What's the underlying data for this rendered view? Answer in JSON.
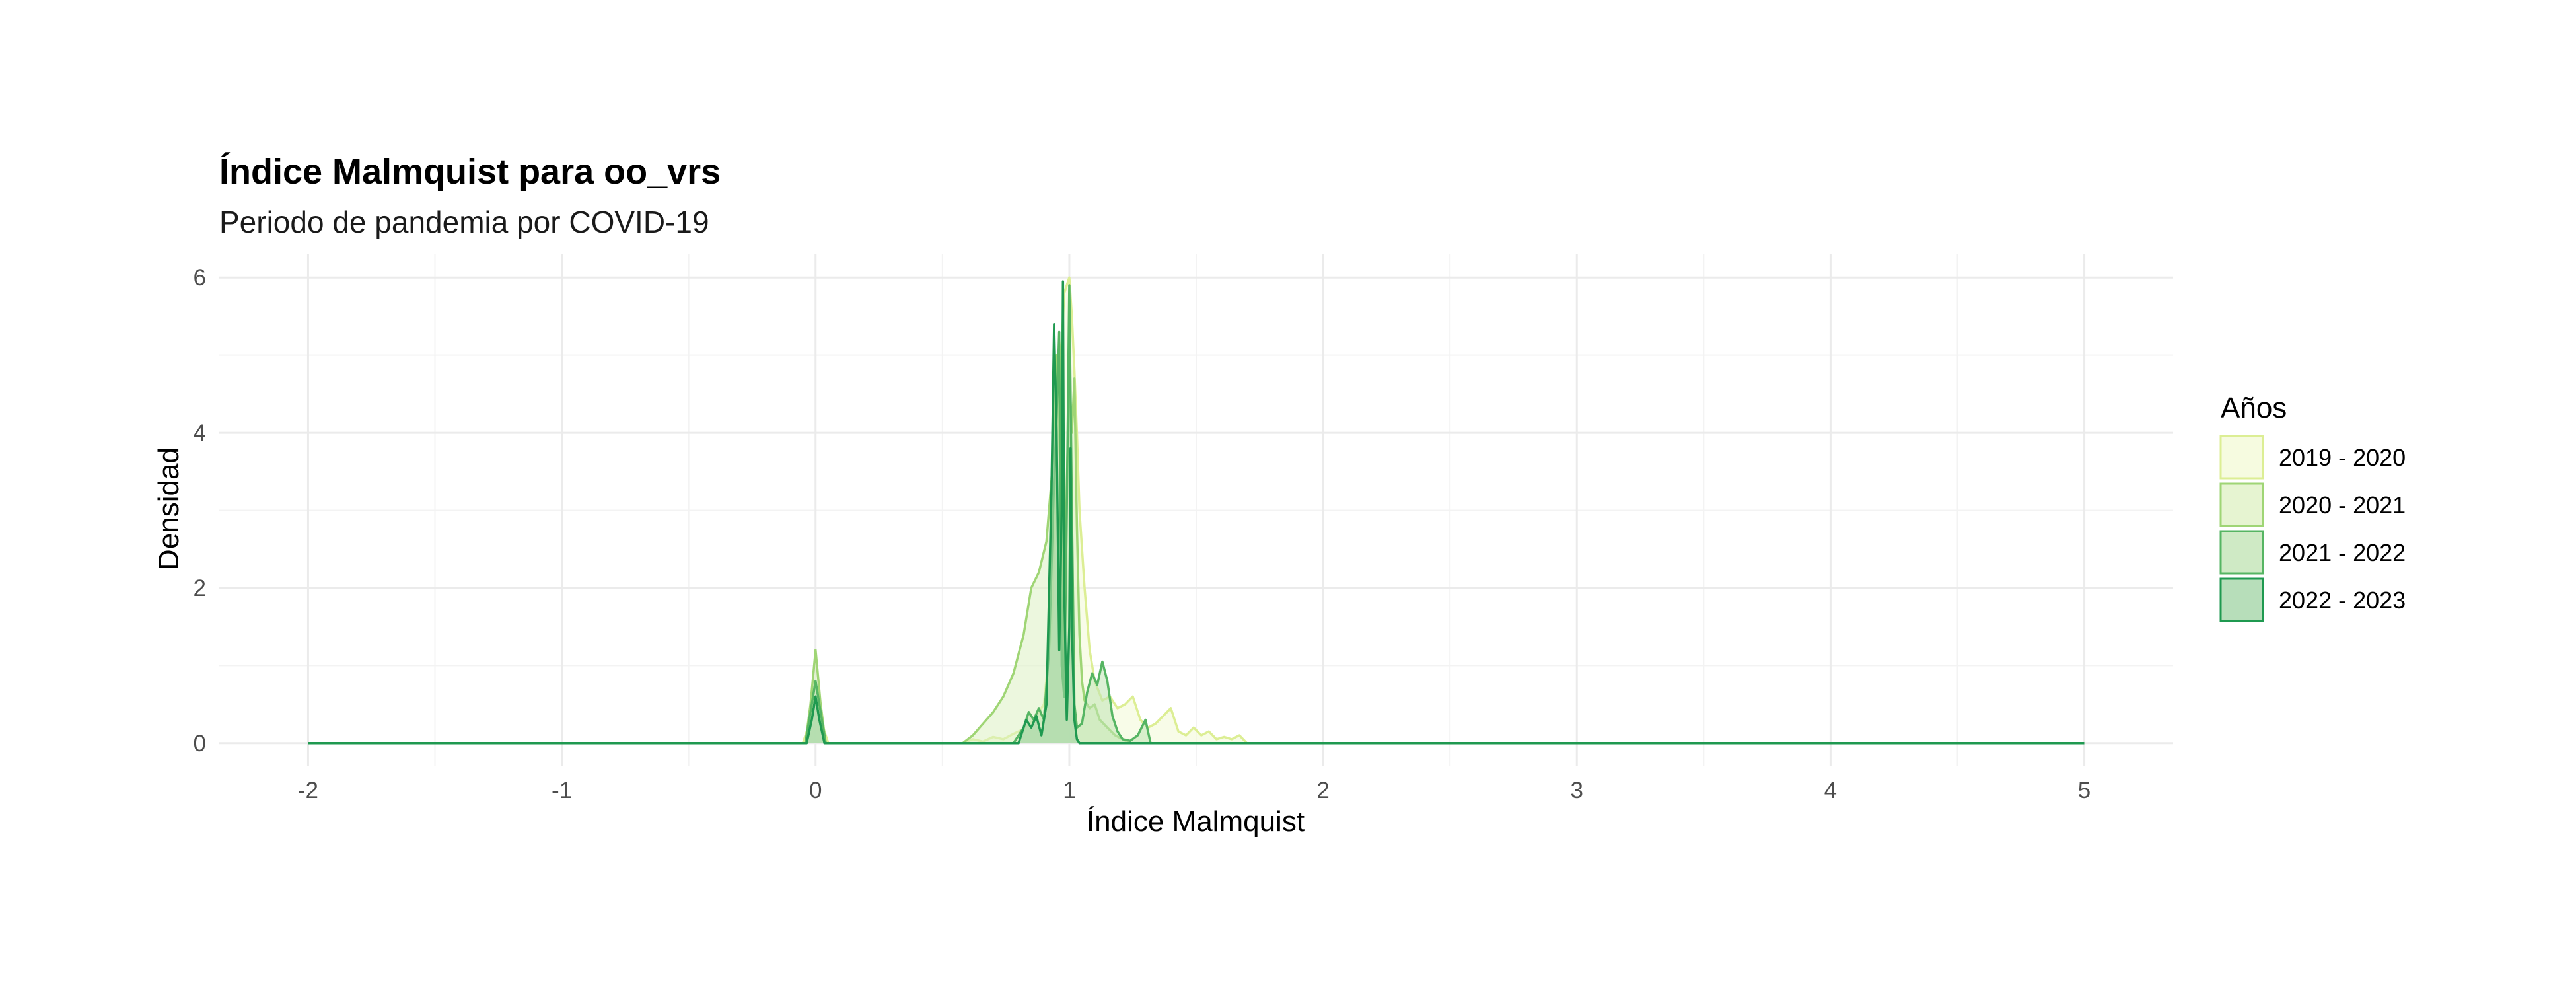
{
  "chart_data": {
    "type": "area",
    "title": "Índice Malmquist para oo_vrs",
    "subtitle": "Periodo de pandemia por COVID-19",
    "xlabel": "Índice Malmquist",
    "ylabel": "Densidad",
    "xlim": [
      -2.35,
      5.35
    ],
    "ylim": [
      -0.3,
      6.3
    ],
    "x_ticks": [
      "-2",
      "-1",
      "0",
      "1",
      "2",
      "3",
      "4",
      "5"
    ],
    "y_ticks": [
      "0",
      "2",
      "4",
      "6"
    ],
    "grid": true,
    "legend": {
      "title": "Años",
      "position": "right"
    },
    "series": [
      {
        "name": "2019 - 2020",
        "fill": "#f3f9d6",
        "stroke": "#dcee94",
        "x": [
          -2,
          -0.05,
          -0.02,
          0,
          0.02,
          0.05,
          0.58,
          0.62,
          0.66,
          0.7,
          0.74,
          0.78,
          0.82,
          0.86,
          0.9,
          0.93,
          0.96,
          0.98,
          1.0,
          1.01,
          1.02,
          1.03,
          1.04,
          1.06,
          1.08,
          1.1,
          1.13,
          1.16,
          1.19,
          1.22,
          1.25,
          1.28,
          1.31,
          1.34,
          1.37,
          1.4,
          1.43,
          1.46,
          1.49,
          1.52,
          1.55,
          1.58,
          1.61,
          1.64,
          1.67,
          1.7,
          5
        ],
        "y": [
          0,
          0,
          0.3,
          0.6,
          0.3,
          0,
          0,
          0.05,
          0.02,
          0.08,
          0.05,
          0.12,
          0.18,
          0.3,
          0.5,
          1.5,
          4.5,
          5.8,
          6.0,
          5.5,
          4.8,
          4.0,
          3.0,
          2.0,
          1.2,
          0.8,
          0.55,
          0.6,
          0.45,
          0.5,
          0.6,
          0.3,
          0.2,
          0.25,
          0.35,
          0.45,
          0.15,
          0.1,
          0.2,
          0.1,
          0.15,
          0.05,
          0.08,
          0.05,
          0.1,
          0,
          0
        ]
      },
      {
        "name": "2020 - 2021",
        "fill": "#ddf0c2",
        "stroke": "#9fd575",
        "x": [
          -2,
          -0.04,
          -0.02,
          0,
          0.02,
          0.04,
          0.58,
          0.62,
          0.66,
          0.7,
          0.74,
          0.78,
          0.82,
          0.85,
          0.88,
          0.91,
          0.93,
          0.95,
          0.97,
          0.98,
          0.99,
          1.0,
          1.01,
          1.02,
          1.03,
          1.04,
          1.05,
          1.06,
          1.08,
          1.1,
          1.12,
          1.15,
          1.18,
          1.21,
          1.24,
          5
        ],
        "y": [
          0,
          0,
          0.5,
          1.2,
          0.5,
          0,
          0,
          0.1,
          0.25,
          0.4,
          0.6,
          0.9,
          1.4,
          2.0,
          2.2,
          2.6,
          3.4,
          5.0,
          3.0,
          1.0,
          3.3,
          4.8,
          4.0,
          4.7,
          2.8,
          1.4,
          0.8,
          0.55,
          0.45,
          0.5,
          0.3,
          0.2,
          0.1,
          0.05,
          0,
          0
        ]
      },
      {
        "name": "2021 - 2022",
        "fill": "#bfe3b2",
        "stroke": "#56b563",
        "x": [
          -2,
          -0.04,
          -0.02,
          0,
          0.02,
          0.04,
          0.78,
          0.82,
          0.84,
          0.86,
          0.88,
          0.9,
          0.92,
          0.94,
          0.95,
          0.96,
          0.97,
          0.98,
          0.99,
          1.0,
          1.01,
          1.02,
          1.03,
          1.05,
          1.07,
          1.09,
          1.11,
          1.13,
          1.15,
          1.17,
          1.19,
          1.21,
          1.24,
          1.27,
          1.3,
          1.32,
          5
        ],
        "y": [
          0,
          0,
          0.4,
          0.8,
          0.4,
          0,
          0,
          0.2,
          0.4,
          0.3,
          0.45,
          0.3,
          1.2,
          3.4,
          4.2,
          5.3,
          1.0,
          0.6,
          3.0,
          5.9,
          3.0,
          0.5,
          0.2,
          0.25,
          0.65,
          0.9,
          0.75,
          1.05,
          0.8,
          0.35,
          0.15,
          0.05,
          0.03,
          0.1,
          0.3,
          0,
          0
        ]
      },
      {
        "name": "2022 - 2023",
        "fill": "#9fd3a3",
        "stroke": "#1f9950",
        "x": [
          -2,
          -0.035,
          -0.015,
          0,
          0.015,
          0.035,
          0.8,
          0.83,
          0.85,
          0.87,
          0.89,
          0.91,
          0.93,
          0.94,
          0.95,
          0.96,
          0.97,
          0.975,
          0.98,
          0.99,
          1.0,
          1.005,
          1.01,
          1.02,
          1.03,
          1.04,
          5
        ],
        "y": [
          0,
          0,
          0.3,
          0.6,
          0.3,
          0,
          0,
          0.3,
          0.2,
          0.35,
          0.1,
          0.5,
          3.3,
          5.4,
          4.0,
          1.2,
          3.0,
          5.95,
          2.0,
          0.3,
          1.5,
          3.8,
          1.5,
          0.3,
          0.05,
          0,
          0
        ]
      }
    ]
  }
}
